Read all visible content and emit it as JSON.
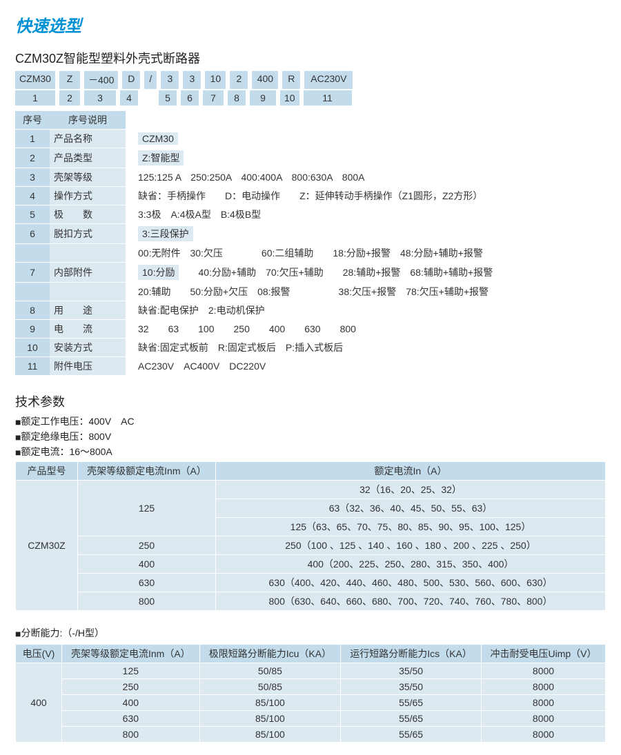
{
  "colors": {
    "accent": "#0091d4",
    "header_bg": "#c3dceb",
    "cell_bg": "#dce9f1",
    "page_bg": "#ffffff",
    "text": "#333333",
    "border": "#ffffff"
  },
  "title": "快速选型",
  "product_heading": "CZM30Z智能型塑料外壳式断路器",
  "code_example": {
    "parts": [
      "CZM30",
      "Z",
      "－400",
      "D",
      "/",
      "3",
      "3",
      "10",
      "2",
      "400",
      "R",
      "AC230V"
    ],
    "widths": [
      58,
      30,
      46,
      26,
      18,
      26,
      26,
      30,
      26,
      38,
      26,
      70
    ],
    "nums": [
      "1",
      "2",
      "3",
      "4",
      "5",
      "6",
      "7",
      "8",
      "9",
      "10",
      "11"
    ],
    "num_widths": [
      58,
      30,
      46,
      26,
      26,
      26,
      30,
      26,
      38,
      26,
      70
    ],
    "slash_gap_index": 4
  },
  "spec": {
    "header": {
      "col0": "序号",
      "col1": "序号说明"
    },
    "rows": [
      {
        "n": "1",
        "label": "产品名称",
        "value": "CZM30",
        "boxed": true
      },
      {
        "n": "2",
        "label": "产品类型",
        "value": "Z:智能型",
        "boxed": true
      },
      {
        "n": "3",
        "label": "壳架等级",
        "value": "125:125 A　250:250A　400:400A　800:630A　800A",
        "boxed": false
      },
      {
        "n": "4",
        "label": "操作方式",
        "value": "缺省：手柄操作　　D：电动操作　　Z：延伸转动手柄操作（Z1圆形，Z2方形）",
        "boxed": false
      },
      {
        "n": "5",
        "label": "极　　数",
        "value": "3:3极　A:4极A型　B:4极B型",
        "boxed": false
      },
      {
        "n": "6",
        "label": "脱扣方式",
        "value": "3:三段保护",
        "boxed": true
      },
      {
        "n": "7",
        "label": "内部附件",
        "multi": [
          "00:无附件　30:欠压　　　　60:二组辅助　　18:分励+报警　48:分励+辅助+报警",
          "10:分励　　40:分励+辅助　70:欠压+辅助　　28:辅助+报警　68:辅助+辅助+报警",
          "20:辅助　　50:分励+欠压　08:报警　　　　　38:欠压+报警　78:欠压+辅助+报警"
        ],
        "boxed_prefix": "10:分励"
      },
      {
        "n": "8",
        "label": "用　　途",
        "value": "缺省:配电保护　2:电动机保护",
        "boxed": false
      },
      {
        "n": "9",
        "label": "电　　流",
        "value": "32　　63　　100　　250　　400　　630　　800",
        "boxed": false
      },
      {
        "n": "10",
        "label": "安装方式",
        "value": "缺省:固定式板前　R:固定式板后　P:插入式板后",
        "boxed": false
      },
      {
        "n": "11",
        "label": "附件电压",
        "value": "AC230V　AC400V　DC220V",
        "boxed": false
      }
    ]
  },
  "tech": {
    "heading": "技术参数",
    "lines": [
      "额定工作电压：400V　AC",
      "额定绝缘电压：800V",
      "额定电流：16～800A"
    ]
  },
  "rated_table": {
    "headers": [
      "产品型号",
      "壳架等级额定电流Inm（A）",
      "额定电流In（A）"
    ],
    "model": "CZM30Z",
    "rows": [
      {
        "inm": "125",
        "span": 3,
        "ins": [
          "32（16、20、25、32）",
          "63（32、36、40、45、50、55、63）",
          "125（63、65、70、75、80、85、90、95、100、125）"
        ]
      },
      {
        "inm": "250",
        "span": 1,
        "ins": [
          "250（100 、125 、140 、160 、180 、200 、225 、250）"
        ]
      },
      {
        "inm": "400",
        "span": 1,
        "ins": [
          "400（200、225、250、280、315、350、400）"
        ]
      },
      {
        "inm": "630",
        "span": 1,
        "ins": [
          "630（400、420、440、460、480、500、530、560、600、630）"
        ]
      },
      {
        "inm": "800",
        "span": 1,
        "ins": [
          "800（630、640、660、680、700、720、740、760、780、800）"
        ]
      }
    ]
  },
  "breaking": {
    "heading": "分断能力:（-/H型）",
    "headers": [
      "电压(V)",
      "壳架等级额定电流Inm（A）",
      "极限短路分断能力Icu（KA）",
      "运行短路分断能力Ics（KA）",
      "冲击耐受电压Uimp（V）"
    ],
    "voltage": "400",
    "rows": [
      {
        "inm": "125",
        "icu": "50/85",
        "ics": "35/50",
        "uimp": "8000"
      },
      {
        "inm": "250",
        "icu": "50/85",
        "ics": "35/50",
        "uimp": "8000"
      },
      {
        "inm": "400",
        "icu": "85/100",
        "ics": "55/65",
        "uimp": "8000"
      },
      {
        "inm": "630",
        "icu": "85/100",
        "ics": "55/65",
        "uimp": "8000"
      },
      {
        "inm": "800",
        "icu": "85/100",
        "ics": "55/65",
        "uimp": "8000"
      }
    ]
  }
}
